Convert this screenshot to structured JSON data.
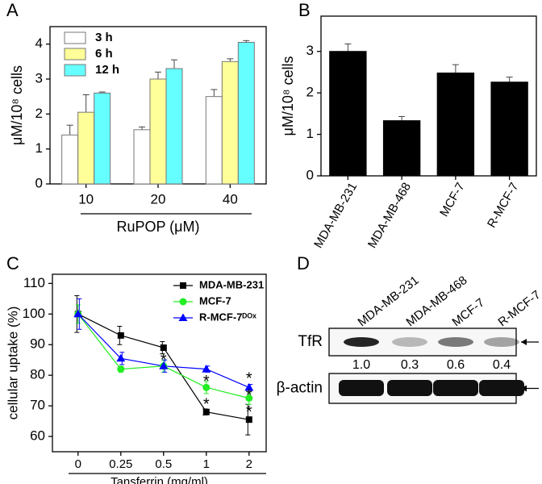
{
  "chart_data": [
    {
      "type": "bar",
      "panel": "A",
      "ylabel": "μM/10⁸ cells",
      "xlabel": "RuPOP (μM)",
      "categories": [
        "10",
        "20",
        "40"
      ],
      "series": [
        {
          "name": "3 h",
          "color": "#ffffff",
          "values": [
            1.4,
            1.55,
            2.5
          ],
          "errors": [
            0.28,
            0.08,
            0.2
          ]
        },
        {
          "name": "6 h",
          "color": "#ffff99",
          "values": [
            2.05,
            3.0,
            3.5
          ],
          "errors": [
            0.5,
            0.2,
            0.08
          ]
        },
        {
          "name": "12 h",
          "color": "#66ffff",
          "values": [
            2.6,
            3.3,
            4.05
          ],
          "errors": [
            0.03,
            0.25,
            0.05
          ]
        }
      ],
      "ylim": [
        0,
        4.5
      ],
      "yticks": [
        0,
        1,
        2,
        3,
        4
      ],
      "legend": "top-left"
    },
    {
      "type": "bar",
      "panel": "B",
      "ylabel": "μM/10⁸ cells",
      "categories": [
        "MDA-MB-231",
        "MDA-MB-468",
        "MCF-7",
        "R-MCF-7"
      ],
      "series": [
        {
          "color": "#000000",
          "values": [
            3.0,
            1.33,
            2.48,
            2.26
          ],
          "errors": [
            0.18,
            0.1,
            0.2,
            0.12
          ]
        }
      ],
      "ylim": [
        0,
        3.85
      ],
      "yticks": [
        0,
        1,
        2,
        3
      ]
    },
    {
      "type": "line",
      "panel": "C",
      "ylabel": "cellular uptake (%)",
      "xlabel": "Tansferrin (mg/ml)",
      "categories": [
        "0",
        "0.25",
        "0.5",
        "1",
        "2"
      ],
      "series": [
        {
          "name": "MDA-MB-231",
          "color": "#000000",
          "marker": "square",
          "values": [
            100,
            93,
            89,
            68,
            65.5
          ],
          "errors": [
            6,
            3,
            2,
            1,
            5
          ]
        },
        {
          "name": "MCF-7",
          "color": "#22ee22",
          "marker": "circle",
          "values": [
            100,
            82,
            83,
            76,
            72.5
          ],
          "errors": [
            3,
            1,
            2,
            2,
            2
          ]
        },
        {
          "name": "R-MCF-7ᴰᴼˣ",
          "color": "#0000ff",
          "marker": "triangle",
          "values": [
            100,
            85.5,
            83,
            82,
            76
          ],
          "errors": [
            5,
            2,
            2,
            1,
            1
          ]
        }
      ],
      "annotations": [
        {
          "text": "*",
          "category": "0.5",
          "y": 86
        },
        {
          "text": "*",
          "category": "1",
          "y": 79
        },
        {
          "text": "*",
          "category": "1",
          "y": 71.5
        },
        {
          "text": "*",
          "category": "2",
          "y": 80
        },
        {
          "text": "*",
          "category": "2",
          "y": 74.5
        },
        {
          "text": "*",
          "category": "2",
          "y": 69
        }
      ],
      "ylim": [
        55,
        113
      ],
      "yticks": [
        60,
        70,
        80,
        90,
        100,
        110
      ],
      "legend": "top-right"
    },
    {
      "type": "blot",
      "panel": "D",
      "lanes": [
        "MDA-MB-231",
        "MDA-MB-468",
        "MCF-7",
        "R-MCF-7"
      ],
      "rows": [
        "TfR",
        "β-actin"
      ],
      "values": [
        1,
        0.3,
        0.6,
        0.4
      ],
      "value_labels": [
        "1.0",
        "0.3",
        "0.6",
        "0.4"
      ]
    }
  ]
}
